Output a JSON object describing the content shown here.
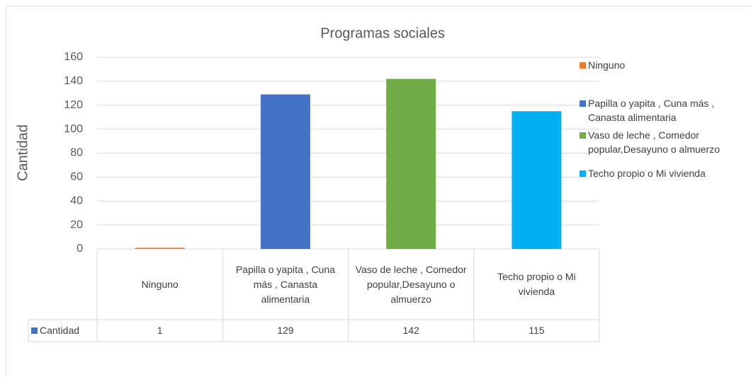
{
  "chart_data": {
    "type": "bar",
    "title": "Programas sociales",
    "y_label": "Cantidad",
    "categories": [
      "Ninguno",
      "Papilla o yapita , Cuna más , Canasta alimentaria",
      "Vaso de leche , Comedor popular,Desayuno o almuerzo",
      "Techo propio o Mi vivienda"
    ],
    "series": [
      {
        "name": "Cantidad",
        "color": "#4472C4",
        "values": [
          1,
          129,
          142,
          115
        ]
      }
    ],
    "colors": [
      "#ED7D31",
      "#4472C4",
      "#70AD47",
      "#00B0F0"
    ],
    "ylim": [
      0,
      160
    ],
    "yticks": [
      0,
      20,
      40,
      60,
      80,
      100,
      120,
      140,
      160
    ],
    "grid": true,
    "legend": "right",
    "data_table": true
  }
}
